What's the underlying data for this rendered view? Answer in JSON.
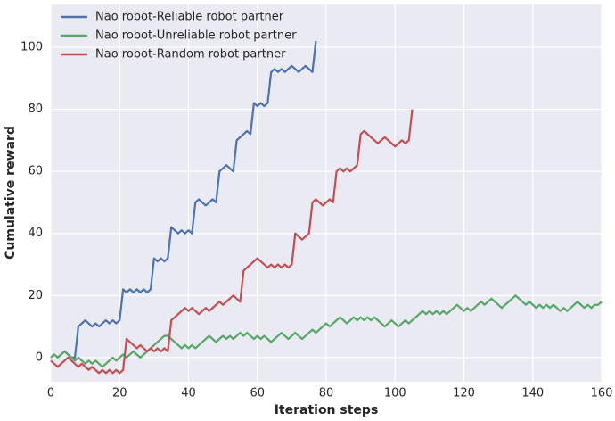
{
  "chart_data": {
    "type": "line",
    "xlabel": "Iteration steps",
    "ylabel": "Cumulative reward",
    "x": [
      0,
      1,
      2,
      3,
      4,
      5,
      6,
      7,
      8,
      9,
      10,
      11,
      12,
      13,
      14,
      15,
      16,
      17,
      18,
      19,
      20,
      21,
      22,
      23,
      24,
      25,
      26,
      27,
      28,
      29,
      30,
      31,
      32,
      33,
      34,
      35,
      36,
      37,
      38,
      39,
      40,
      41,
      42,
      43,
      44,
      45,
      46,
      47,
      48,
      49,
      50,
      51,
      52,
      53,
      54,
      55,
      56,
      57,
      58,
      59,
      60,
      61,
      62,
      63,
      64,
      65,
      66,
      67,
      68,
      69,
      70,
      71,
      72,
      73,
      74,
      75,
      76,
      77,
      78,
      79,
      80,
      81,
      82,
      83,
      84,
      85,
      86,
      87,
      88,
      89,
      90,
      91,
      92,
      93,
      94,
      95,
      96,
      97,
      98,
      99,
      100,
      101,
      102,
      103,
      104,
      105,
      106,
      107,
      108,
      109,
      110,
      111,
      112,
      113,
      114,
      115,
      116,
      117,
      118,
      119,
      120,
      121,
      122,
      123,
      124,
      125,
      126,
      127,
      128,
      129,
      130,
      131,
      132,
      133,
      134,
      135,
      136,
      137,
      138,
      139,
      140,
      141,
      142,
      143,
      144,
      145,
      146,
      147,
      148,
      149,
      150,
      151,
      152,
      153,
      154,
      155,
      156,
      157,
      158,
      159,
      160
    ],
    "series": [
      {
        "name": "Nao robot-Reliable robot partner",
        "color": "#4c72b0",
        "values": [
          0,
          1,
          0,
          1,
          2,
          1,
          0,
          0,
          10,
          11,
          12,
          11,
          10,
          11,
          10,
          11,
          12,
          11,
          12,
          11,
          12,
          22,
          21,
          22,
          21,
          22,
          21,
          22,
          21,
          22,
          32,
          31,
          32,
          31,
          32,
          42,
          41,
          40,
          41,
          40,
          41,
          40,
          50,
          51,
          50,
          49,
          50,
          51,
          50,
          60,
          61,
          62,
          61,
          60,
          70,
          71,
          72,
          73,
          72,
          82,
          81,
          82,
          81,
          82,
          92,
          93,
          92,
          93,
          92,
          93,
          94,
          93,
          92,
          93,
          94,
          93,
          92,
          102,
          null,
          null,
          null,
          null,
          null,
          null,
          null,
          null,
          null,
          null,
          null,
          null,
          null,
          null,
          null,
          null,
          null,
          null,
          null,
          null,
          null,
          null,
          null,
          null,
          null,
          null,
          null,
          null,
          null,
          null,
          null,
          null,
          null,
          null,
          null,
          null,
          null,
          null,
          null,
          null,
          null,
          null,
          null,
          null,
          null,
          null,
          null,
          null,
          null,
          null,
          null,
          null,
          null,
          null,
          null,
          null,
          null,
          null,
          null,
          null,
          null,
          null,
          null,
          null,
          null,
          null,
          null,
          null,
          null,
          null,
          null,
          null,
          null,
          null,
          null,
          null,
          null,
          null,
          null,
          null,
          null,
          null,
          null
        ]
      },
      {
        "name": "Nao robot-Unreliable robot partner",
        "color": "#55a868",
        "values": [
          0,
          1,
          0,
          1,
          2,
          1,
          0,
          -1,
          0,
          -1,
          -2,
          -1,
          -2,
          -1,
          -2,
          -3,
          -2,
          -1,
          0,
          -1,
          0,
          1,
          0,
          1,
          2,
          1,
          0,
          1,
          2,
          3,
          4,
          5,
          6,
          7,
          7,
          6,
          5,
          4,
          3,
          4,
          3,
          4,
          3,
          4,
          5,
          6,
          7,
          6,
          5,
          6,
          7,
          6,
          7,
          6,
          7,
          8,
          7,
          8,
          7,
          6,
          7,
          6,
          7,
          6,
          5,
          6,
          7,
          8,
          7,
          6,
          7,
          8,
          7,
          6,
          7,
          8,
          9,
          8,
          9,
          10,
          11,
          10,
          11,
          12,
          13,
          12,
          11,
          12,
          13,
          12,
          13,
          12,
          13,
          12,
          13,
          12,
          11,
          10,
          11,
          12,
          11,
          10,
          11,
          12,
          11,
          12,
          13,
          14,
          15,
          14,
          15,
          14,
          15,
          14,
          15,
          14,
          15,
          16,
          17,
          16,
          15,
          16,
          15,
          16,
          17,
          18,
          17,
          18,
          19,
          18,
          17,
          16,
          17,
          18,
          19,
          20,
          19,
          18,
          17,
          18,
          17,
          16,
          17,
          16,
          17,
          16,
          17,
          16,
          15,
          16,
          15,
          16,
          17,
          18,
          17,
          16,
          17,
          16,
          17,
          17,
          18
        ]
      },
      {
        "name": "Nao robot-Random robot partner",
        "color": "#c44e52",
        "values": [
          -1,
          -2,
          -3,
          -2,
          -1,
          0,
          -1,
          -2,
          -3,
          -2,
          -3,
          -4,
          -3,
          -4,
          -5,
          -4,
          -5,
          -4,
          -5,
          -4,
          -5,
          -4,
          6,
          5,
          4,
          3,
          4,
          3,
          2,
          3,
          2,
          3,
          2,
          3,
          2,
          12,
          13,
          14,
          15,
          16,
          15,
          16,
          15,
          14,
          15,
          16,
          15,
          16,
          17,
          18,
          17,
          18,
          19,
          20,
          19,
          18,
          28,
          29,
          30,
          31,
          32,
          31,
          30,
          29,
          30,
          29,
          30,
          29,
          30,
          29,
          30,
          40,
          39,
          38,
          39,
          40,
          50,
          51,
          50,
          49,
          50,
          51,
          50,
          60,
          61,
          60,
          61,
          60,
          61,
          62,
          72,
          73,
          72,
          71,
          70,
          69,
          70,
          71,
          70,
          69,
          68,
          69,
          70,
          69,
          70,
          80,
          null,
          null,
          null,
          null,
          null,
          null,
          null,
          null,
          null,
          null,
          null,
          null,
          null,
          null,
          null,
          null,
          null,
          null,
          null,
          null,
          null,
          null,
          null,
          null,
          null,
          null,
          null,
          null,
          null,
          null,
          null,
          null,
          null,
          null,
          null,
          null,
          null,
          null,
          null,
          null,
          null,
          null,
          null,
          null,
          null,
          null,
          null,
          null,
          null,
          null,
          null,
          null,
          null,
          null,
          null
        ]
      }
    ],
    "xlim": [
      0,
      160
    ],
    "xticks": [
      0,
      20,
      40,
      60,
      80,
      100,
      120,
      140,
      160
    ],
    "ylim": [
      -7.8,
      113.8
    ],
    "yticks": [
      0,
      20,
      40,
      60,
      80,
      100
    ],
    "grid": true,
    "legend": "upper left"
  }
}
